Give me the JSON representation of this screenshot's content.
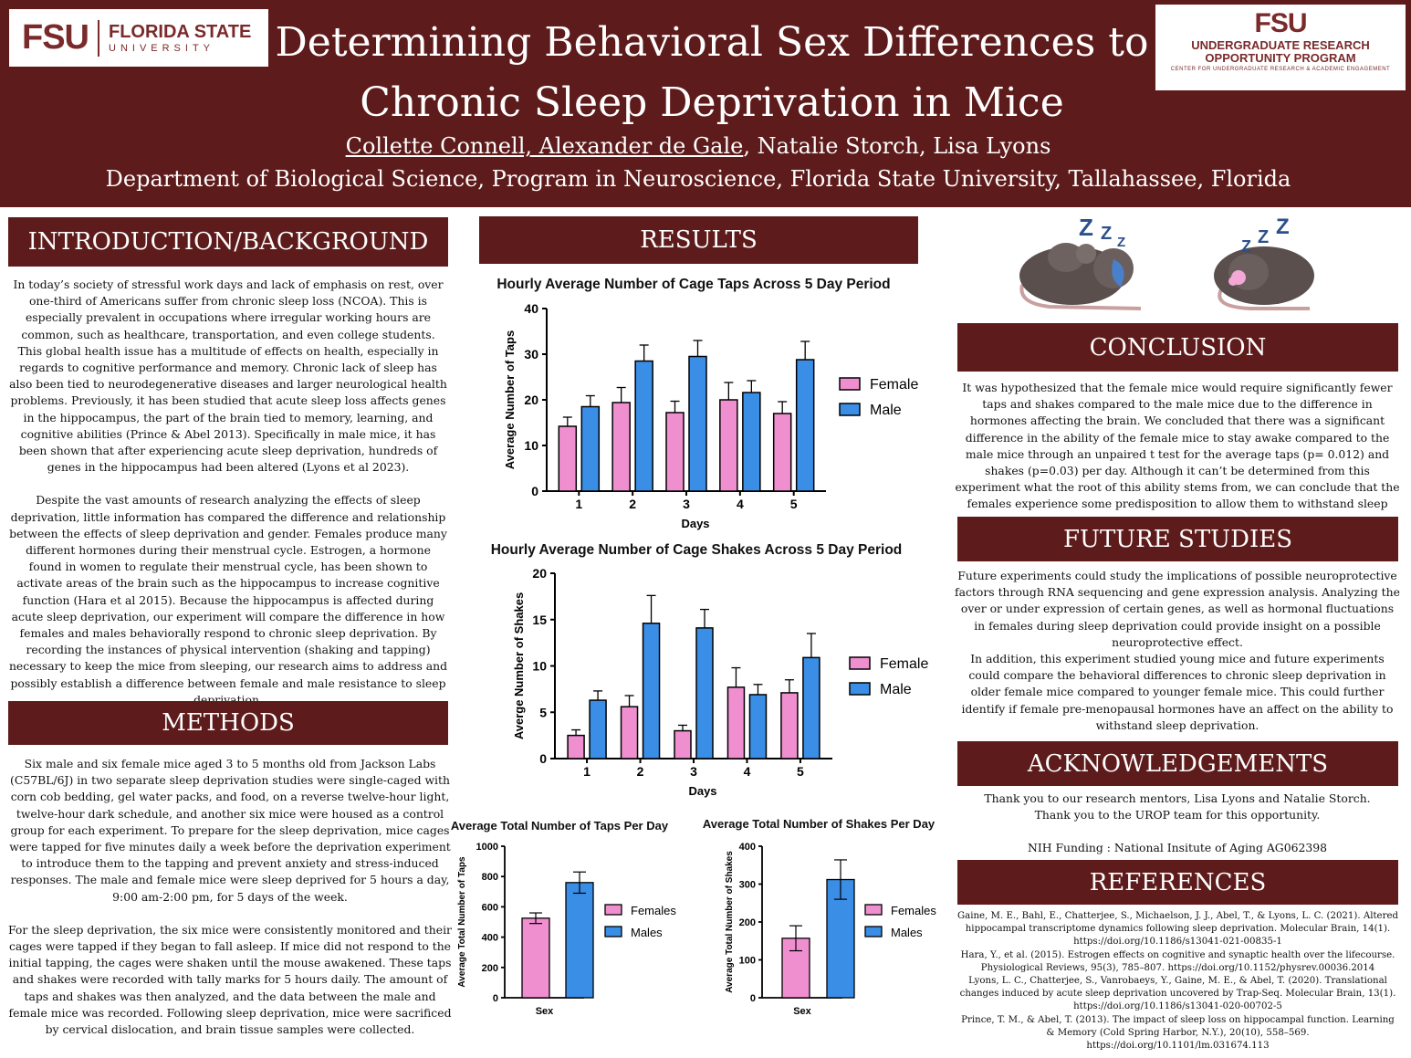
{
  "header": {
    "logo_left_mark": "FSU",
    "logo_left_name": "FLORIDA STATE",
    "logo_left_sub": "UNIVERSITY",
    "logo_right_mark": "FSU",
    "logo_right_line1": "UNDERGRADUATE RESEARCH",
    "logo_right_line2": "OPPORTUNITY PROGRAM",
    "logo_right_line3": "CENTER FOR UNDERGRADUATE RESEARCH & ACADEMIC ENGAGEMENT",
    "title_line1": "Determining Behavioral Sex Differences to",
    "title_line2": "Chronic Sleep Deprivation in Mice",
    "authors_underlined": "Collette Connell, Alexander de Gale",
    "authors_rest": ", Natalie Storch, Lisa Lyons",
    "affiliation": "Department of Biological Science, Program in Neuroscience, Florida State University, Tallahassee, Florida"
  },
  "intro": {
    "heading": "INTRODUCTION/BACKGROUND",
    "para1": "In today’s society of stressful work days and lack of emphasis on rest, over one-third of Americans suffer from chronic sleep loss (NCOA). This is especially prevalent in occupations where irregular working hours are common, such as healthcare, transportation, and even college students. This global health issue has a multitude of effects on health, especially in regards to cognitive performance and memory. Chronic lack of sleep has also been tied to neurodegenerative diseases and larger neurological health problems. Previously, it has been studied that acute sleep loss affects genes in the hippocampus, the part of the brain tied to memory, learning, and cognitive abilities (Prince & Abel 2013). Specifically in male mice, it has been shown that after experiencing acute sleep deprivation, hundreds of genes in the hippocampus had been altered (Lyons et al 2023).",
    "para2": "Despite the vast amounts of research analyzing the effects of sleep deprivation, little information has compared the difference and relationship between the effects of sleep deprivation and gender. Females produce many different hormones during their menstrual cycle. Estrogen, a hormone found in women to regulate their menstrual cycle, has been shown to activate areas of the brain such as the hippocampus to increase cognitive function (Hara et al 2015). Because the hippocampus is affected during acute sleep deprivation, our experiment will compare the difference in how females and males behaviorally respond to chronic sleep deprivation. By recording the instances of physical intervention (shaking and tapping) necessary to keep the mice from sleeping, our research aims to address and possibly establish a difference between female and male resistance to sleep deprivation."
  },
  "methods": {
    "heading": "METHODS",
    "para1": "Six male and six female mice aged 3 to 5 months old from Jackson Labs (C57BL/6J) in two separate sleep deprivation studies were single-caged with corn cob bedding, gel water packs, and food, on a reverse twelve-hour light, twelve-hour dark schedule, and another six mice were housed as a control group for each experiment. To prepare for the sleep deprivation, mice cages were tapped for five minutes daily a week before the deprivation experiment to introduce them to the tapping and prevent anxiety and stress-induced responses. The male and female mice were sleep deprived for 5 hours a day, 9:00 am-2:00 pm, for 5 days of the week.",
    "para2": "For the sleep deprivation, the six mice were consistently monitored and their cages were tapped if they began to fall asleep. If mice did not respond to the initial tapping, the cages were shaken until the mouse awakened. These taps and shakes were recorded with tally marks for 5 hours daily. The amount of taps and shakes was then analyzed, and the data between the male and female mice was recorded. Following sleep deprivation, mice were sacrificed by cervical dislocation, and brain tissue samples were collected."
  },
  "results": {
    "heading": "RESULTS"
  },
  "conclusion": {
    "heading": "CONCLUSION",
    "text": "It was hypothesized that the female mice would require significantly fewer taps and shakes compared to the male mice due to the difference in hormones affecting the brain. We concluded that there was a significant difference in the ability of the female mice to stay awake compared to the male mice through an unpaired t test for the average taps (p= 0.012) and shakes (p=0.03) per day. Although it can’t be determined from this experiment what the root of this ability stems from, we can conclude that the females experience some predisposition to allow them to withstand sleep deprivation."
  },
  "future": {
    "heading": "FUTURE STUDIES",
    "para1": "Future experiments could study the implications of possible neuroprotective factors through RNA sequencing and gene expression analysis. Analyzing the over or under expression of certain genes, as well as hormonal fluctuations in females during sleep deprivation could provide insight on a possible neuroprotective effect.",
    "para2": "In addition, this experiment studied young mice and future experiments could compare the behavioral differences to chronic sleep deprivation in older female mice compared to younger female mice. This could further identify if female pre-menopausal hormones have an affect on the ability to withstand sleep deprivation."
  },
  "acknowledgements": {
    "heading": "ACKNOWLEDGEMENTS",
    "line1": "Thank you to our research mentors, Lisa Lyons and Natalie Storch.",
    "line2": "Thank you to the UROP team for this opportunity.",
    "line3": "NIH Funding : National Insitute of Aging AG062398"
  },
  "references": {
    "heading": "REFERENCES",
    "items": [
      "Gaine, M. E., Bahl, E., Chatterjee, S., Michaelson, J. J., Abel, T., & Lyons, L. C. (2021). Altered hippocampal transcriptome dynamics following sleep deprivation. Molecular Brain, 14(1). https://doi.org/10.1186/s13041-021-00835-1",
      "Hara, Y., et al. (2015). Estrogen effects on cognitive and synaptic health over the lifecourse. Physiological Reviews, 95(3), 785–807. https://doi.org/10.1152/physrev.00036.2014",
      "Lyons, L. C., Chatterjee, S., Vanrobaeys, Y., Gaine, M. E., & Abel, T. (2020). Translational changes induced by acute sleep deprivation uncovered by Trap-Seq. Molecular Brain, 13(1). https://doi.org/10.1186/s13041-020-00702-5",
      "Prince, T. M., & Abel, T. (2013). The impact of sleep loss on hippocampal function. Learning & Memory (Cold Spring Harbor, N.Y.), 20(10), 558–569. https://doi.org/10.1101/lm.031674.113"
    ]
  },
  "colors": {
    "maroon": "#5e1b1b",
    "female": "#f08fd0",
    "male": "#3a8ee6"
  },
  "chart_data": [
    {
      "type": "bar",
      "title": "Hourly Average Number of Cage Taps Across 5 Day Period",
      "xlabel": "Days",
      "ylabel": "Average Number of Taps",
      "categories": [
        "1",
        "2",
        "3",
        "4",
        "5"
      ],
      "ylim": [
        0,
        40
      ],
      "yticks": [
        "0",
        "10",
        "20",
        "30",
        "40"
      ],
      "legend_position": "right",
      "series": [
        {
          "name": "Female",
          "values": [
            14.2,
            19.4,
            17.2,
            20.0,
            17.0
          ],
          "errors": [
            2.0,
            3.3,
            2.5,
            3.8,
            2.6
          ]
        },
        {
          "name": "Male",
          "values": [
            18.5,
            28.5,
            29.5,
            21.6,
            28.8
          ],
          "errors": [
            2.4,
            3.5,
            3.5,
            2.6,
            4.0
          ]
        }
      ]
    },
    {
      "type": "bar",
      "title": "Hourly Average Number of Cage Shakes Across 5 Day Period",
      "xlabel": "Days",
      "ylabel": "Averge Number of Shakes",
      "categories": [
        "1",
        "2",
        "3",
        "4",
        "5"
      ],
      "ylim": [
        0,
        20
      ],
      "yticks": [
        "0",
        "5",
        "10",
        "15",
        "20"
      ],
      "legend_position": "right",
      "series": [
        {
          "name": "Female",
          "values": [
            2.5,
            5.6,
            3.0,
            7.7,
            7.1
          ],
          "errors": [
            0.6,
            1.2,
            0.6,
            2.1,
            1.4
          ]
        },
        {
          "name": "Male",
          "values": [
            6.3,
            14.6,
            14.1,
            6.9,
            10.9
          ],
          "errors": [
            1.0,
            3.0,
            2.0,
            1.1,
            2.6
          ]
        }
      ]
    },
    {
      "type": "bar",
      "title": "Average Total Number of Taps Per Day",
      "xlabel": "Sex",
      "ylabel": "Average Total Number of Taps",
      "categories": [
        "Females",
        "Males"
      ],
      "ylim": [
        0,
        1000
      ],
      "yticks": [
        "0",
        "200",
        "400",
        "600",
        "800",
        "1000"
      ],
      "legend_position": "right",
      "values": [
        525,
        760
      ],
      "errors": [
        35,
        70
      ]
    },
    {
      "type": "bar",
      "title": "Average Total Number of Shakes Per Day",
      "xlabel": "Sex",
      "ylabel": "Average Total Number of Shakes",
      "categories": [
        "Females",
        "Males"
      ],
      "ylim": [
        0,
        400
      ],
      "yticks": [
        "0",
        "100",
        "200",
        "300",
        "400"
      ],
      "legend_position": "right",
      "values": [
        157,
        312
      ],
      "errors": [
        33,
        52
      ]
    }
  ]
}
